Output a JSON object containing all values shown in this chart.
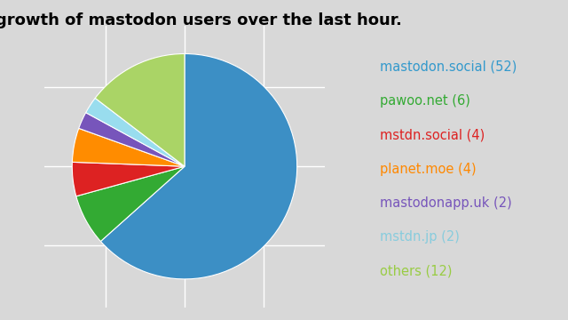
{
  "title": "growth of mastodon users over the last hour.",
  "labels": [
    "mastodon.social (52)",
    "pawoo.net (6)",
    "mstdn.social (4)",
    "planet.moe (4)",
    "mastodonapp.uk (2)",
    "mstdn.jp (2)",
    "others (12)"
  ],
  "values": [
    52,
    6,
    4,
    4,
    2,
    2,
    12
  ],
  "pie_colors": [
    "#3c8fc5",
    "#33aa33",
    "#dd2222",
    "#ff8c00",
    "#7755bb",
    "#99ddee",
    "#aad466"
  ],
  "legend_text_colors": [
    "#3399cc",
    "#33aa33",
    "#dd2222",
    "#ff8800",
    "#7755bb",
    "#88ccdd",
    "#99cc44"
  ],
  "background_color": "#d8d8d8",
  "legend_bg": "#ffffff",
  "title_fontsize": 13,
  "legend_fontsize": 10.5,
  "grid_color": "#ffffff",
  "wedge_edge_color": "#ffffff",
  "wedge_linewidth": 0.8
}
